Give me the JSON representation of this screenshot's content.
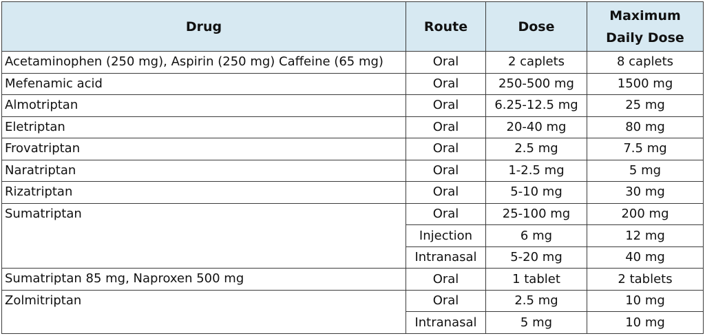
{
  "table": {
    "headers": {
      "drug": "Drug",
      "route": "Route",
      "dose": "Dose",
      "max_line1": "Maximum",
      "max_line2": "Daily Dose"
    },
    "rows": [
      {
        "drug": "Acetaminophen (250 mg), Aspirin (250 mg) Caffeine (65 mg)",
        "route": "Oral",
        "dose": "2 caplets",
        "max": "8 caplets"
      },
      {
        "drug": "Mefenamic acid",
        "route": "Oral",
        "dose": "250-500 mg",
        "max": "1500 mg"
      },
      {
        "drug": "Almotriptan",
        "route": "Oral",
        "dose": "6.25-12.5 mg",
        "max": "25 mg"
      },
      {
        "drug": "Eletriptan",
        "route": "Oral",
        "dose": "20-40 mg",
        "max": "80 mg"
      },
      {
        "drug": "Frovatriptan",
        "route": "Oral",
        "dose": "2.5 mg",
        "max": "7.5 mg"
      },
      {
        "drug": "Naratriptan",
        "route": "Oral",
        "dose": "1-2.5 mg",
        "max": "5 mg"
      },
      {
        "drug": "Rizatriptan",
        "route": "Oral",
        "dose": "5-10 mg",
        "max": "30 mg"
      },
      {
        "drug": "Sumatriptan",
        "route": "Oral",
        "dose": "25-100 mg",
        "max": "200 mg"
      },
      {
        "drug": "",
        "route": "Injection",
        "dose": "6 mg",
        "max": "12 mg"
      },
      {
        "drug": "",
        "route": "Intranasal",
        "dose": "5-20 mg",
        "max": "40 mg"
      },
      {
        "drug": "Sumatriptan 85 mg, Naproxen 500 mg",
        "route": "Oral",
        "dose": "1 tablet",
        "max": "2 tablets"
      },
      {
        "drug": "Zolmitriptan",
        "route": "Oral",
        "dose": "2.5 mg",
        "max": "10 mg"
      },
      {
        "drug": "",
        "route": "Intranasal",
        "dose": "5 mg",
        "max": "10 mg"
      }
    ]
  }
}
